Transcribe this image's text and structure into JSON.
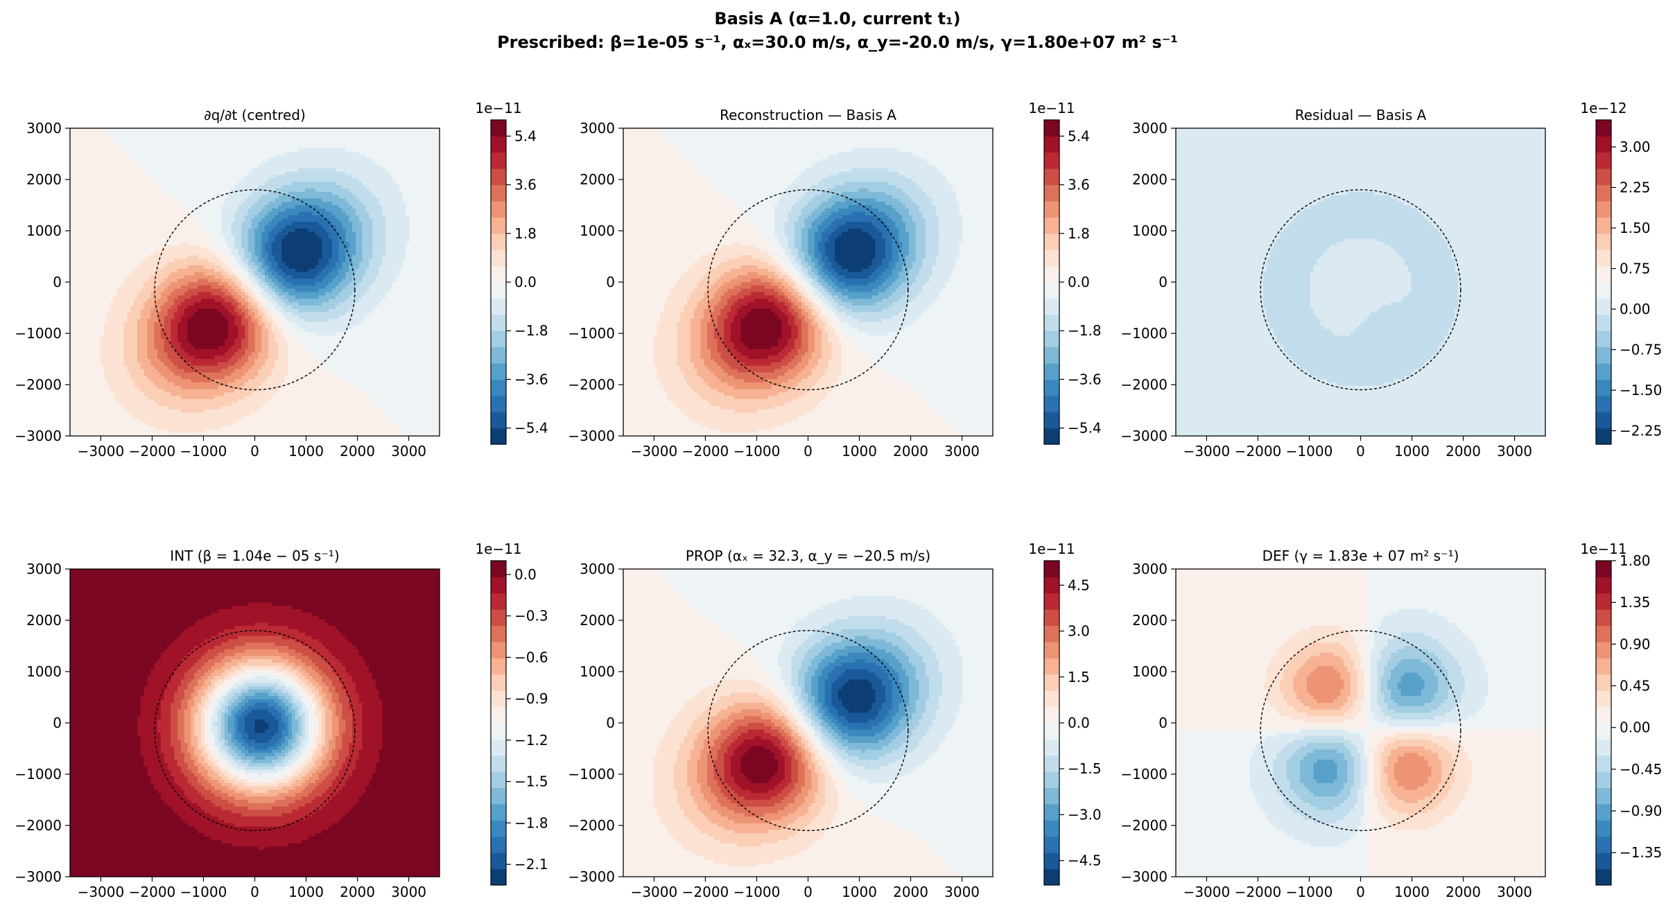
{
  "figure": {
    "title_line1": "Basis A (α=1.0, current t₁)",
    "title_line2": "Prescribed: β=1e-05 s⁻¹, αₓ=30.0 m/s, α_y=-20.0 m/s, γ=1.80e+07 m² s⁻¹"
  },
  "colormap": "RdBu_r",
  "chart_data": [
    {
      "type": "heatmap",
      "title": "∂q/∂t (centred)",
      "xlim": [
        -3600,
        3600
      ],
      "ylim": [
        -3000,
        3000
      ],
      "xticks": [
        "−3000",
        "−2000",
        "−1000",
        "0",
        "1000",
        "2000",
        "3000"
      ],
      "yticks": [
        "3000",
        "2000",
        "1000",
        "0",
        "−1000",
        "−2000",
        "−3000"
      ],
      "field": {
        "kind": "dipole",
        "amp": 6e-11,
        "angle_deg": 40,
        "eccentricity": 0.45
      },
      "circle": {
        "cx": 0,
        "cy": -150,
        "r": 1950
      },
      "colorbar": {
        "exponent": "1e−11",
        "vmin": -6.0,
        "vmax": 6.0,
        "levels": 20,
        "ticks": [
          "5.4",
          "3.6",
          "1.8",
          "0.0",
          "−1.8",
          "−3.6",
          "−5.4"
        ]
      }
    },
    {
      "type": "heatmap",
      "title": "Reconstruction — Basis A",
      "xlim": [
        -3600,
        3600
      ],
      "ylim": [
        -3000,
        3000
      ],
      "xticks": [
        "−3000",
        "−2000",
        "−1000",
        "0",
        "1000",
        "2000",
        "3000"
      ],
      "yticks": [
        "3000",
        "2000",
        "1000",
        "0",
        "−1000",
        "−2000",
        "−3000"
      ],
      "field": {
        "kind": "dipole",
        "amp": 6e-11,
        "angle_deg": 40,
        "eccentricity": 0.45
      },
      "circle": {
        "cx": 0,
        "cy": -150,
        "r": 1950
      },
      "colorbar": {
        "exponent": "1e−11",
        "vmin": -6.0,
        "vmax": 6.0,
        "levels": 20,
        "ticks": [
          "5.4",
          "3.6",
          "1.8",
          "0.0",
          "−1.8",
          "−3.6",
          "−5.4"
        ]
      }
    },
    {
      "type": "heatmap",
      "title": "Residual — Basis A",
      "xlim": [
        -3600,
        3600
      ],
      "ylim": [
        -3000,
        3000
      ],
      "xticks": [
        "−3000",
        "−2000",
        "−1000",
        "0",
        "1000",
        "2000",
        "3000"
      ],
      "yticks": [
        "3000",
        "2000",
        "1000",
        "0",
        "−1000",
        "−2000",
        "−3000"
      ],
      "field": {
        "kind": "residual",
        "amp": 1.5e-13
      },
      "circle": {
        "cx": 0,
        "cy": -150,
        "r": 1950
      },
      "colorbar": {
        "exponent": "1e−12",
        "vmin": -2.5,
        "vmax": 3.5,
        "levels": 20,
        "ticks": [
          "3.00",
          "2.25",
          "1.50",
          "0.75",
          "0.00",
          "−0.75",
          "−1.50",
          "−2.25"
        ]
      }
    },
    {
      "type": "heatmap",
      "title": "INT (β = 1.04e − 05 s⁻¹)",
      "xlim": [
        -3600,
        3600
      ],
      "ylim": [
        -3000,
        3000
      ],
      "xticks": [
        "−3000",
        "−2000",
        "−1000",
        "0",
        "1000",
        "2000",
        "3000"
      ],
      "yticks": [
        "3000",
        "2000",
        "1000",
        "0",
        "−1000",
        "−2000",
        "−3000"
      ],
      "field": {
        "kind": "gauss",
        "amp": -2.2e-11
      },
      "circle": {
        "cx": 0,
        "cy": -150,
        "r": 1950
      },
      "colorbar": {
        "exponent": "1e−11",
        "vmin": -2.25,
        "vmax": 0.1,
        "levels": 20,
        "ticks": [
          "0.0",
          "−0.3",
          "−0.6",
          "−0.9",
          "−1.2",
          "−1.5",
          "−1.8",
          "−2.1"
        ]
      }
    },
    {
      "type": "heatmap",
      "title": "PROP (αₓ = 32.3, α_y = −20.5 m/s)",
      "xlim": [
        -3600,
        3600
      ],
      "ylim": [
        -3000,
        3000
      ],
      "xticks": [
        "−3000",
        "−2000",
        "−1000",
        "0",
        "1000",
        "2000",
        "3000"
      ],
      "yticks": [
        "3000",
        "2000",
        "1000",
        "0",
        "−1000",
        "−2000",
        "−3000"
      ],
      "field": {
        "kind": "dipole",
        "amp": 5.2e-11,
        "angle_deg": 35,
        "eccentricity": 0.4
      },
      "circle": {
        "cx": 0,
        "cy": -150,
        "r": 1950
      },
      "colorbar": {
        "exponent": "1e−11",
        "vmin": -5.3,
        "vmax": 5.3,
        "levels": 20,
        "ticks": [
          "4.5",
          "3.0",
          "1.5",
          "0.0",
          "−1.5",
          "−3.0",
          "−4.5"
        ]
      }
    },
    {
      "type": "heatmap",
      "title": "DEF (γ = 1.83e + 07 m² s⁻¹)",
      "xlim": [
        -3600,
        3600
      ],
      "ylim": [
        -3000,
        3000
      ],
      "xticks": [
        "−3000",
        "−2000",
        "−1000",
        "0",
        "1000",
        "2000",
        "3000"
      ],
      "yticks": [
        "3000",
        "2000",
        "1000",
        "0",
        "−1000",
        "−2000",
        "−3000"
      ],
      "field": {
        "kind": "quadrupole",
        "amp": 1.7e-11
      },
      "circle": {
        "cx": 0,
        "cy": -150,
        "r": 1950
      },
      "colorbar": {
        "exponent": "1e−11",
        "vmin": -1.7,
        "vmax": 1.8,
        "levels": 20,
        "ticks": [
          "1.80",
          "1.35",
          "0.90",
          "0.45",
          "0.00",
          "−0.45",
          "−0.90",
          "−1.35"
        ]
      }
    }
  ]
}
